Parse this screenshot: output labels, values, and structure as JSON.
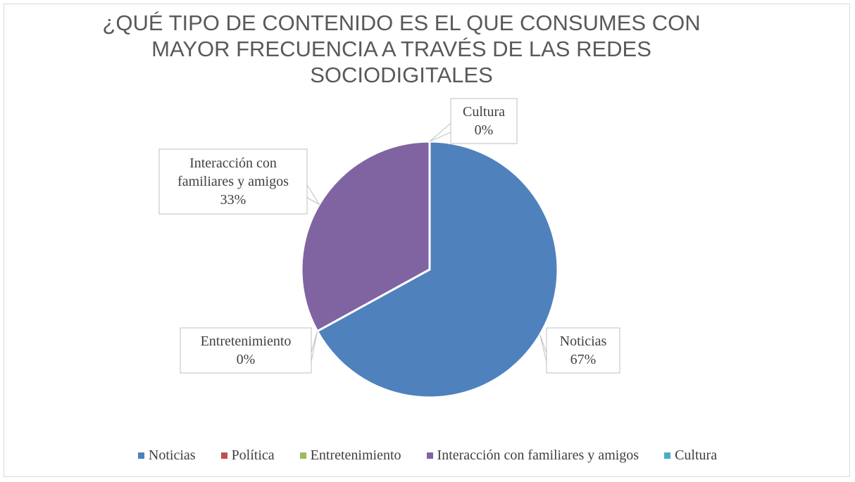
{
  "chart_data": {
    "type": "pie",
    "title_lines": [
      "¿QUÉ TIPO DE CONTENIDO ES EL QUE CONSUMES CON",
      "MAYOR FRECUENCIA A TRAVÉS DE LAS REDES",
      "SOCIODIGITALES"
    ],
    "categories": [
      "Noticias",
      "Política",
      "Entretenimiento",
      "Interacción con familiares y amigos",
      "Cultura"
    ],
    "values": [
      67,
      0,
      0,
      33,
      0
    ],
    "colors": [
      "#4f81bd",
      "#c0504d",
      "#9bbb59",
      "#8064a2",
      "#4bacc6"
    ],
    "data_labels": [
      {
        "lines": [
          "Noticias",
          "67%"
        ]
      },
      {
        "lines": []
      },
      {
        "lines": [
          "Entretenimiento",
          "0%"
        ]
      },
      {
        "lines": [
          "Interacción con",
          "familiares y amigos",
          "33%"
        ]
      },
      {
        "lines": [
          "Cultura",
          "0%"
        ]
      }
    ],
    "legend_position": "bottom"
  }
}
